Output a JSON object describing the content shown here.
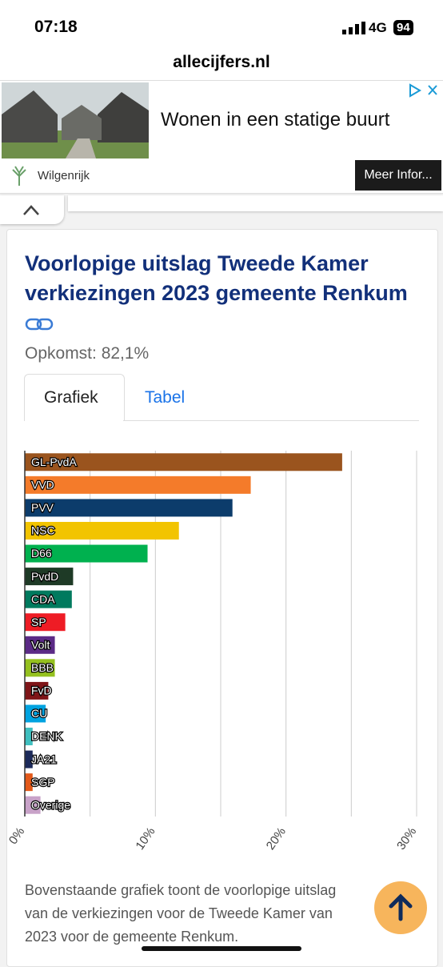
{
  "status_bar": {
    "time": "07:18",
    "network": "4G",
    "battery": "94"
  },
  "url": "allecijfers.nl",
  "ad": {
    "headline": "Wonen in een statige buurt",
    "advertiser": "Wilgenrijk",
    "cta": "Meer Infor..."
  },
  "card": {
    "subtitle": "Opkomst: 82,1%",
    "tabs": [
      "Grafiek",
      "Tabel"
    ],
    "caption": [
      "Bovenstaande grafiek toont de voorlopige uitslag",
      "van de verkiezingen voor de Tweede Kamer van",
      "2023 voor de gemeente Renkum."
    ]
  },
  "chart_data": {
    "type": "bar",
    "orientation": "horizontal",
    "title": "Voorlopige uitslag Tweede Kamer verkiezingen 2023 gemeente Renkum",
    "categories": [
      "GL-PvdA",
      "VVD",
      "PVV",
      "NSC",
      "D66",
      "PvdD",
      "CDA",
      "SP",
      "Volt",
      "BBB",
      "FvD",
      "CU",
      "DENK",
      "JA21",
      "SGP",
      "Overige"
    ],
    "values": [
      24.3,
      17.3,
      15.9,
      11.8,
      9.4,
      3.7,
      3.6,
      3.1,
      2.3,
      2.3,
      1.8,
      1.6,
      0.6,
      0.6,
      0.6,
      1.2
    ],
    "colors": [
      "#9a541e",
      "#f47b2a",
      "#0c3c6b",
      "#f2c400",
      "#00b14f",
      "#1e3a26",
      "#007a5e",
      "#ee1c25",
      "#5b2a86",
      "#95c11f",
      "#7f1518",
      "#00a3e0",
      "#3fbfbf",
      "#1c2a5a",
      "#e3591a",
      "#c8a2c8"
    ],
    "xlim": [
      0,
      30
    ],
    "xticks": [
      {
        "value": 0,
        "label": "0%"
      },
      {
        "value": 10,
        "label": "10%"
      },
      {
        "value": 20,
        "label": "20%"
      },
      {
        "value": 30,
        "label": "30%"
      }
    ],
    "minor_xticks": [
      5,
      15,
      25
    ],
    "grid": true
  }
}
